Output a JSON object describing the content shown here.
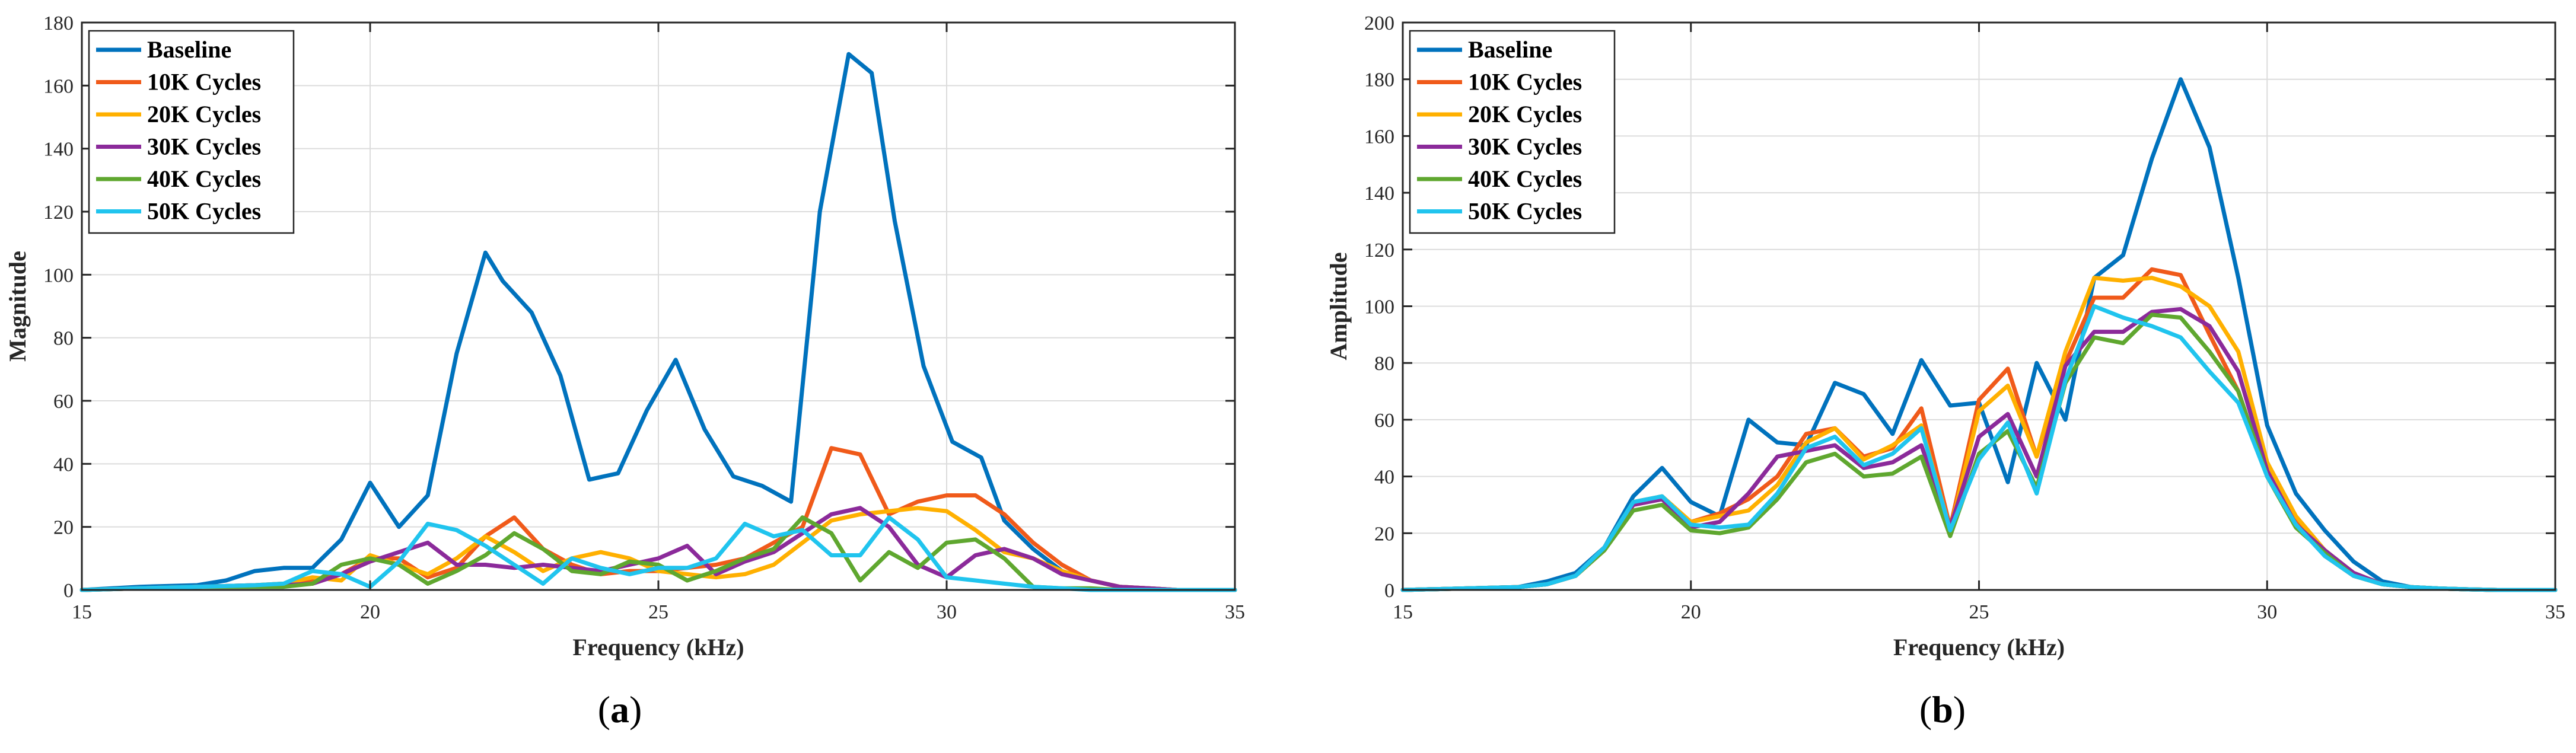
{
  "colors": {
    "Baseline": "#0072BD",
    "10K Cycles": "#F05A1A",
    "20K Cycles": "#FFB000",
    "30K Cycles": "#8B2A9A",
    "40K Cycles": "#5FA72F",
    "50K Cycles": "#20C4EE"
  },
  "chart_data": [
    {
      "id": "a",
      "type": "line",
      "panel_label": "a",
      "title": "",
      "xlabel": "Frequency (kHz)",
      "ylabel": "Magnitude",
      "xlim": [
        15,
        35
      ],
      "ylim": [
        0,
        180
      ],
      "xticks": [
        15,
        20,
        25,
        30,
        35
      ],
      "yticks": [
        0,
        20,
        40,
        60,
        80,
        100,
        120,
        140,
        160,
        180
      ],
      "grid": true,
      "legend": "top-left",
      "series": [
        {
          "name": "Baseline",
          "x": [
            15,
            16,
            17,
            17.5,
            18,
            18.5,
            19,
            19.5,
            20,
            20.5,
            21,
            21.5,
            22,
            22.3,
            22.8,
            23.3,
            23.8,
            24.3,
            24.8,
            25.3,
            25.8,
            26.3,
            26.8,
            27.3,
            27.8,
            28.3,
            28.7,
            29.1,
            29.6,
            30.1,
            30.6,
            31,
            31.5,
            32,
            32.5,
            33,
            33.5,
            34,
            34.5,
            35
          ],
          "y": [
            0,
            1,
            1.5,
            3,
            6,
            7,
            7,
            16,
            34,
            20,
            30,
            75,
            107,
            98,
            88,
            68,
            35,
            37,
            57,
            73,
            51,
            36,
            33,
            28,
            120,
            170,
            164,
            117,
            71,
            47,
            42,
            22,
            13,
            6,
            3,
            1,
            0.5,
            0,
            0,
            0
          ]
        },
        {
          "name": "10K Cycles",
          "x": [
            15,
            16,
            17,
            18,
            18.5,
            19,
            19.5,
            20,
            20.5,
            21,
            21.5,
            22,
            22.5,
            23,
            23.5,
            24,
            24.5,
            25,
            25.5,
            26,
            26.5,
            27,
            27.5,
            28,
            28.5,
            29,
            29.5,
            30,
            30.5,
            31,
            31.5,
            32,
            32.5,
            33,
            33.5,
            34,
            35
          ],
          "y": [
            0,
            0.5,
            1,
            1.5,
            2,
            3,
            5,
            10,
            10,
            4,
            7,
            17,
            23,
            13,
            8,
            5,
            6,
            6,
            7,
            8,
            10,
            15,
            20,
            45,
            43,
            24,
            28,
            30,
            30,
            24,
            15,
            8,
            3,
            1,
            0.5,
            0,
            0
          ]
        },
        {
          "name": "20K Cycles",
          "x": [
            15,
            16,
            17,
            18,
            18.5,
            19,
            19.5,
            20,
            20.5,
            21,
            21.5,
            22,
            22.5,
            23,
            23.5,
            24,
            24.5,
            25,
            25.5,
            26,
            26.5,
            27,
            27.5,
            28,
            28.5,
            29,
            29.5,
            30,
            30.5,
            31,
            31.5,
            32,
            32.5,
            33,
            33.5,
            34,
            35
          ],
          "y": [
            0,
            0.5,
            1,
            1.5,
            2,
            4,
            3,
            11,
            8,
            5,
            10,
            17,
            12,
            6,
            10,
            12,
            10,
            6,
            5,
            4,
            5,
            8,
            15,
            22,
            24,
            25,
            26,
            25,
            19,
            12,
            10,
            6,
            3,
            1,
            0.5,
            0,
            0
          ]
        },
        {
          "name": "30K Cycles",
          "x": [
            15,
            16,
            17,
            18,
            18.5,
            19,
            19.5,
            20,
            20.5,
            21,
            21.5,
            22,
            22.5,
            23,
            23.5,
            24,
            24.5,
            25,
            25.5,
            26,
            26.5,
            27,
            27.5,
            28,
            28.5,
            29,
            29.5,
            30,
            30.5,
            31,
            31.5,
            32,
            32.5,
            33,
            33.5,
            34,
            35
          ],
          "y": [
            0,
            0.5,
            1,
            1.5,
            1.5,
            2,
            5,
            9,
            12,
            15,
            8,
            8,
            7,
            8,
            7,
            6,
            8,
            10,
            14,
            5,
            9,
            12,
            18,
            24,
            26,
            20,
            8,
            4,
            11,
            13,
            10,
            5,
            3,
            1,
            0.5,
            0,
            0
          ]
        },
        {
          "name": "40K Cycles",
          "x": [
            15,
            16,
            17,
            18,
            18.5,
            19,
            19.5,
            20,
            20.5,
            21,
            21.5,
            22,
            22.5,
            23,
            23.5,
            24,
            24.5,
            25,
            25.5,
            26,
            26.5,
            27,
            27.5,
            28,
            28.5,
            29,
            29.5,
            30,
            30.5,
            31,
            31.5,
            32,
            32.5,
            33,
            33.5,
            34,
            35
          ],
          "y": [
            0,
            0.5,
            1,
            1,
            1,
            2,
            8,
            10,
            8,
            2,
            6,
            11,
            18,
            13,
            6,
            5,
            9,
            8,
            3,
            6,
            10,
            13,
            23,
            18,
            3,
            12,
            7,
            15,
            16,
            10,
            1,
            0.5,
            0.5,
            0,
            0,
            0,
            0
          ]
        },
        {
          "name": "50K Cycles",
          "x": [
            15,
            16,
            17,
            18,
            18.5,
            19,
            19.5,
            20,
            20.5,
            21,
            21.5,
            22,
            22.5,
            23,
            23.5,
            24,
            24.5,
            25,
            25.5,
            26,
            26.5,
            27,
            27.5,
            28,
            28.5,
            29,
            29.5,
            30,
            30.5,
            31,
            31.5,
            32,
            32.5,
            33,
            33.5,
            34,
            35
          ],
          "y": [
            0,
            0.5,
            1,
            1.5,
            2,
            6,
            5,
            1,
            9,
            21,
            19,
            14,
            8,
            2,
            10,
            7,
            5,
            7,
            7,
            10,
            21,
            17,
            19,
            11,
            11,
            23,
            16,
            4,
            3,
            2,
            1,
            0.5,
            0,
            0,
            0,
            0,
            0
          ]
        }
      ]
    },
    {
      "id": "b",
      "type": "line",
      "panel_label": "b",
      "title": "",
      "xlabel": "Frequency (kHz)",
      "ylabel": "Amplitude",
      "xlim": [
        15,
        35
      ],
      "ylim": [
        0,
        200
      ],
      "xticks": [
        15,
        20,
        25,
        30,
        35
      ],
      "yticks": [
        0,
        20,
        40,
        60,
        80,
        100,
        120,
        140,
        160,
        180,
        200
      ],
      "grid": true,
      "legend": "top-left",
      "series": [
        {
          "name": "Baseline",
          "x": [
            15,
            16,
            17,
            17.5,
            18,
            18.5,
            19,
            19.5,
            20,
            20.5,
            21,
            21.5,
            22,
            22.5,
            23,
            23.5,
            24,
            24.5,
            25,
            25.5,
            26,
            26.5,
            27,
            27.5,
            28,
            28.5,
            29,
            29.5,
            30,
            30.5,
            31,
            31.5,
            32,
            32.5,
            33,
            33.5,
            34,
            35
          ],
          "y": [
            0,
            0.5,
            1,
            3,
            6,
            15,
            33,
            43,
            31,
            26,
            60,
            52,
            51,
            73,
            69,
            55,
            81,
            65,
            66,
            38,
            80,
            60,
            110,
            118,
            152,
            180,
            156,
            110,
            58,
            34,
            21,
            10,
            3,
            1,
            0.5,
            0.2,
            0,
            0
          ]
        },
        {
          "name": "10K Cycles",
          "x": [
            15,
            16,
            17,
            17.5,
            18,
            18.5,
            19,
            19.5,
            20,
            20.5,
            21,
            21.5,
            22,
            22.5,
            23,
            23.5,
            24,
            24.5,
            25,
            25.5,
            26,
            26.5,
            27,
            27.5,
            28,
            28.5,
            29,
            29.5,
            30,
            30.5,
            31,
            31.5,
            32,
            32.5,
            33,
            33.5,
            34,
            35
          ],
          "y": [
            0,
            0.5,
            1,
            2,
            5,
            14,
            30,
            32,
            24,
            27,
            32,
            40,
            55,
            57,
            47,
            50,
            64,
            22,
            67,
            78,
            47,
            80,
            103,
            103,
            113,
            111,
            90,
            70,
            40,
            24,
            12,
            5,
            2,
            1,
            0.5,
            0.2,
            0,
            0
          ]
        },
        {
          "name": "20K Cycles",
          "x": [
            15,
            16,
            17,
            17.5,
            18,
            18.5,
            19,
            19.5,
            20,
            20.5,
            21,
            21.5,
            22,
            22.5,
            23,
            23.5,
            24,
            24.5,
            25,
            25.5,
            26,
            26.5,
            27,
            27.5,
            28,
            28.5,
            29,
            29.5,
            30,
            30.5,
            31,
            31.5,
            32,
            32.5,
            33,
            33.5,
            34,
            35
          ],
          "y": [
            0,
            0.5,
            1,
            2,
            5,
            15,
            31,
            33,
            24,
            26,
            28,
            37,
            52,
            57,
            46,
            51,
            58,
            21,
            63,
            72,
            47,
            84,
            110,
            109,
            110,
            107,
            100,
            84,
            45,
            26,
            14,
            6,
            2,
            1,
            0.5,
            0.2,
            0,
            0
          ]
        },
        {
          "name": "30K Cycles",
          "x": [
            15,
            16,
            17,
            17.5,
            18,
            18.5,
            19,
            19.5,
            20,
            20.5,
            21,
            21.5,
            22,
            22.5,
            23,
            23.5,
            24,
            24.5,
            25,
            25.5,
            26,
            26.5,
            27,
            27.5,
            28,
            28.5,
            29,
            29.5,
            30,
            30.5,
            31,
            31.5,
            32,
            32.5,
            33,
            33.5,
            34,
            35
          ],
          "y": [
            0,
            0.5,
            1,
            2,
            5,
            15,
            30,
            32,
            22,
            24,
            34,
            47,
            49,
            51,
            43,
            45,
            51,
            22,
            54,
            62,
            40,
            79,
            91,
            91,
            98,
            99,
            93,
            77,
            42,
            23,
            14,
            6,
            2,
            1,
            0.5,
            0.2,
            0,
            0
          ]
        },
        {
          "name": "40K Cycles",
          "x": [
            15,
            16,
            17,
            17.5,
            18,
            18.5,
            19,
            19.5,
            20,
            20.5,
            21,
            21.5,
            22,
            22.5,
            23,
            23.5,
            24,
            24.5,
            25,
            25.5,
            26,
            26.5,
            27,
            27.5,
            28,
            28.5,
            29,
            29.5,
            30,
            30.5,
            31,
            31.5,
            32,
            32.5,
            33,
            33.5,
            34,
            35
          ],
          "y": [
            0,
            0.5,
            1,
            2,
            5,
            14,
            28,
            30,
            21,
            20,
            22,
            32,
            45,
            48,
            40,
            41,
            47,
            19,
            48,
            56,
            36,
            73,
            89,
            87,
            97,
            96,
            84,
            70,
            40,
            22,
            13,
            5,
            2,
            1,
            0.5,
            0.2,
            0,
            0
          ]
        },
        {
          "name": "50K Cycles",
          "x": [
            15,
            16,
            17,
            17.5,
            18,
            18.5,
            19,
            19.5,
            20,
            20.5,
            21,
            21.5,
            22,
            22.5,
            23,
            23.5,
            24,
            24.5,
            25,
            25.5,
            26,
            26.5,
            27,
            27.5,
            28,
            28.5,
            29,
            29.5,
            30,
            30.5,
            31,
            31.5,
            32,
            32.5,
            33,
            33.5,
            34,
            35
          ],
          "y": [
            0,
            0.5,
            1,
            2,
            5,
            15,
            31,
            33,
            23,
            22,
            23,
            34,
            50,
            54,
            44,
            48,
            57,
            21,
            46,
            59,
            34,
            74,
            100,
            96,
            93,
            89,
            77,
            66,
            40,
            23,
            12,
            5,
            2,
            1,
            0.5,
            0.2,
            0,
            0
          ]
        }
      ]
    }
  ]
}
